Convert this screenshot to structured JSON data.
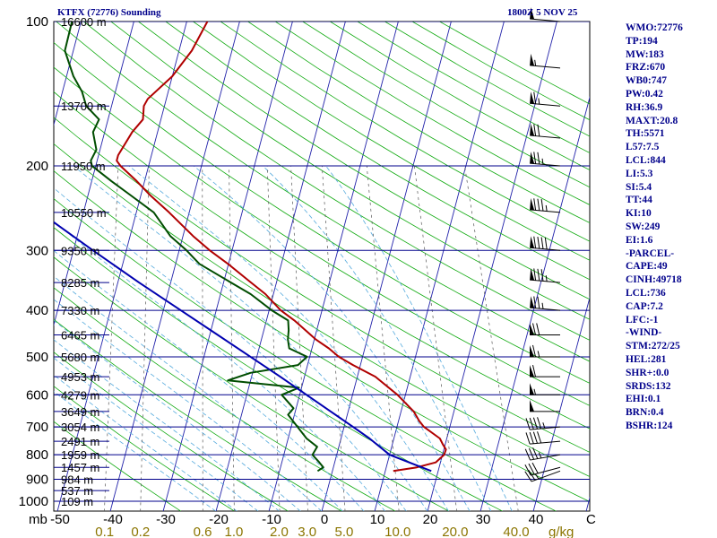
{
  "header": {
    "station": "KTFX (72776) Sounding",
    "time": "1800Z  5 NOV 25"
  },
  "indices": [
    "WMO:72776",
    "TP:194",
    "MW:183",
    "FRZ:670",
    "WB0:747",
    "PW:0.42",
    "RH:36.9",
    "MAXT:20.8",
    "TH:5571",
    "L57:7.5",
    "LCL:844",
    "LI:5.3",
    "SI:5.4",
    "TT:44",
    "KI:10",
    "SW:249",
    "EI:1.6",
    "-PARCEL-",
    "CAPE:49",
    "CINH:49718",
    "LCL:736",
    "CAP:7.2",
    "LFC:-1",
    "-WIND-",
    "STM:272/25",
    "HEL:281",
    "SHR+:0.0",
    "SRDS:132",
    "EHI:0.1",
    "BRN:0.4",
    "BSHR:124"
  ],
  "colors": {
    "isobar": "#00008b",
    "isotherm": "#2222aa",
    "dry_adiabat": "#11aa11",
    "moist_adiabat": "#55aadd",
    "mixing_ratio": "#555555",
    "temperature": "#b00000",
    "dewpoint": "#004d00",
    "parcel": "#0000b0",
    "barb": "#000000",
    "text": "#00008b",
    "wb_labels": "#8b7500"
  },
  "chart_data": {
    "type": "line",
    "title": "KTFX (72776) Sounding",
    "diagram": "skew-T log-p",
    "yscale": "log",
    "ylim": [
      1050,
      100
    ],
    "xlim": [
      -50,
      50
    ],
    "pressure_ticks": [
      100,
      200,
      300,
      400,
      500,
      600,
      700,
      800,
      900,
      1000
    ],
    "pressure_tick_labels": [
      "100",
      "200",
      "300",
      "400",
      "500",
      "600",
      "700",
      "800",
      "900",
      "1000"
    ],
    "temperature_ticks": [
      -50,
      -40,
      -30,
      -20,
      -10,
      0,
      10,
      20,
      30,
      40
    ],
    "temperature_tick_labels": [
      "-50",
      "-40",
      "-30",
      "-20",
      "-10",
      "0",
      "10",
      "20",
      "30",
      "40"
    ],
    "pressure_unit": "mb",
    "temperature_unit": "C",
    "mixing_ratio_ticks": [
      0.1,
      0.2,
      0.6,
      1.0,
      2.0,
      3.0,
      5.0,
      10.0,
      20.0,
      40.0
    ],
    "mixing_ratio_tick_labels": [
      "0.1",
      "0.2",
      "0.6",
      "1.0",
      "2.0",
      "3.0",
      "5.0",
      "10.0",
      "20.0",
      "40.0"
    ],
    "mixing_ratio_unit": "g/kg",
    "height_labels": [
      {
        "p": 100,
        "label": "16600 m"
      },
      {
        "p": 150,
        "label": "13700 m"
      },
      {
        "p": 200,
        "label": "11950 m"
      },
      {
        "p": 250,
        "label": "10550 m"
      },
      {
        "p": 300,
        "label": "9350 m"
      },
      {
        "p": 350,
        "label": "8285 m"
      },
      {
        "p": 400,
        "label": "7330 m"
      },
      {
        "p": 450,
        "label": "6465 m"
      },
      {
        "p": 500,
        "label": "5680 m"
      },
      {
        "p": 550,
        "label": "4953 m"
      },
      {
        "p": 600,
        "label": "4279 m"
      },
      {
        "p": 650,
        "label": "3649 m"
      },
      {
        "p": 700,
        "label": "3054 m"
      },
      {
        "p": 750,
        "label": "2491 m"
      },
      {
        "p": 800,
        "label": "1959 m"
      },
      {
        "p": 850,
        "label": "1457 m"
      },
      {
        "p": 900,
        "label": "984 m"
      },
      {
        "p": 950,
        "label": "537 m"
      },
      {
        "p": 1000,
        "label": "109 m"
      }
    ],
    "series": [
      {
        "name": "temperature",
        "points": [
          [
            865,
            11.5
          ],
          [
            850,
            15.8
          ],
          [
            830,
            19.1
          ],
          [
            800,
            20.3
          ],
          [
            780,
            20.4
          ],
          [
            760,
            19.5
          ],
          [
            740,
            18.7
          ],
          [
            700,
            15.1
          ],
          [
            680,
            13.9
          ],
          [
            650,
            12.4
          ],
          [
            600,
            8.5
          ],
          [
            550,
            3.4
          ],
          [
            520,
            -1.4
          ],
          [
            500,
            -4.5
          ],
          [
            480,
            -6.8
          ],
          [
            460,
            -9.7
          ],
          [
            450,
            -10.9
          ],
          [
            420,
            -14.7
          ],
          [
            400,
            -17.8
          ],
          [
            370,
            -21.5
          ],
          [
            350,
            -24.8
          ],
          [
            320,
            -30.1
          ],
          [
            300,
            -34.2
          ],
          [
            280,
            -38.1
          ],
          [
            250,
            -43.8
          ],
          [
            230,
            -48.3
          ],
          [
            215,
            -51.5
          ],
          [
            200,
            -55.3
          ],
          [
            195,
            -56.3
          ],
          [
            190,
            -56.3
          ],
          [
            170,
            -54.8
          ],
          [
            160,
            -53.4
          ],
          [
            150,
            -53.9
          ],
          [
            145,
            -53.5
          ],
          [
            130,
            -50.0
          ],
          [
            115,
            -47.6
          ],
          [
            100,
            -46.1
          ]
        ]
      },
      {
        "name": "dewpoint",
        "points": [
          [
            865,
            -2.8
          ],
          [
            850,
            -1.9
          ],
          [
            830,
            -2.9
          ],
          [
            800,
            -4.6
          ],
          [
            770,
            -4.1
          ],
          [
            740,
            -6.5
          ],
          [
            700,
            -8.8
          ],
          [
            660,
            -11.2
          ],
          [
            640,
            -10.5
          ],
          [
            600,
            -13.4
          ],
          [
            580,
            -10.5
          ],
          [
            560,
            -24.3
          ],
          [
            540,
            -20.4
          ],
          [
            520,
            -11.8
          ],
          [
            500,
            -10.5
          ],
          [
            480,
            -14.3
          ],
          [
            460,
            -15.0
          ],
          [
            440,
            -15.3
          ],
          [
            420,
            -15.9
          ],
          [
            400,
            -19.5
          ],
          [
            370,
            -24.3
          ],
          [
            350,
            -28.6
          ],
          [
            320,
            -35.5
          ],
          [
            300,
            -38.6
          ],
          [
            280,
            -42.4
          ],
          [
            250,
            -46.7
          ],
          [
            230,
            -52.0
          ],
          [
            215,
            -56.3
          ],
          [
            200,
            -60.7
          ],
          [
            195,
            -61.2
          ],
          [
            185,
            -60.7
          ],
          [
            170,
            -62.2
          ],
          [
            160,
            -61.7
          ],
          [
            150,
            -64.8
          ],
          [
            140,
            -66.3
          ],
          [
            130,
            -68.7
          ],
          [
            115,
            -71.6
          ],
          [
            100,
            -71.7
          ]
        ]
      },
      {
        "name": "parcel",
        "points": [
          [
            865,
            18.7
          ],
          [
            800,
            10.0
          ],
          [
            740,
            5.4
          ],
          [
            700,
            1.7
          ],
          [
            650,
            -3.3
          ],
          [
            600,
            -8.7
          ],
          [
            550,
            -14.6
          ],
          [
            500,
            -21.2
          ],
          [
            450,
            -28.5
          ],
          [
            400,
            -36.7
          ],
          [
            350,
            -46.0
          ],
          [
            300,
            -56.3
          ],
          [
            250,
            -68.2
          ],
          [
            200,
            -82.0
          ],
          [
            150,
            -98.6
          ],
          [
            125,
            -108.4
          ]
        ]
      }
    ],
    "wind_barbs": [
      {
        "p": 865,
        "dir": 250,
        "spd": 25
      },
      {
        "p": 850,
        "dir": 255,
        "spd": 30
      },
      {
        "p": 800,
        "dir": 260,
        "spd": 35
      },
      {
        "p": 750,
        "dir": 265,
        "spd": 40
      },
      {
        "p": 700,
        "dir": 265,
        "spd": 45
      },
      {
        "p": 650,
        "dir": 270,
        "spd": 50
      },
      {
        "p": 600,
        "dir": 270,
        "spd": 55
      },
      {
        "p": 550,
        "dir": 270,
        "spd": 60
      },
      {
        "p": 500,
        "dir": 270,
        "spd": 65
      },
      {
        "p": 450,
        "dir": 270,
        "spd": 70
      },
      {
        "p": 400,
        "dir": 275,
        "spd": 75
      },
      {
        "p": 350,
        "dir": 275,
        "spd": 85
      },
      {
        "p": 300,
        "dir": 275,
        "spd": 90
      },
      {
        "p": 250,
        "dir": 275,
        "spd": 85
      },
      {
        "p": 200,
        "dir": 275,
        "spd": 75
      },
      {
        "p": 175,
        "dir": 275,
        "spd": 70
      },
      {
        "p": 150,
        "dir": 275,
        "spd": 65
      },
      {
        "p": 125,
        "dir": 275,
        "spd": 55
      },
      {
        "p": 100,
        "dir": 275,
        "spd": 50
      }
    ]
  }
}
